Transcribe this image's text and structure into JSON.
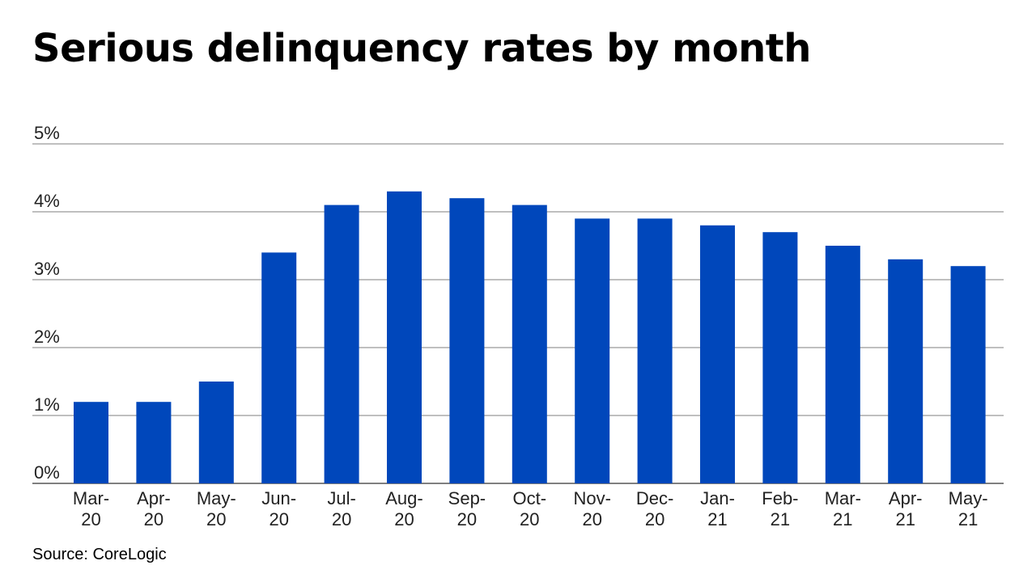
{
  "chart_data": {
    "type": "bar",
    "title": "Serious delinquency rates by month",
    "categories": [
      [
        "Mar-",
        "20"
      ],
      [
        "Apr-",
        "20"
      ],
      [
        "May-",
        "20"
      ],
      [
        "Jun-",
        "20"
      ],
      [
        "Jul-",
        "20"
      ],
      [
        "Aug-",
        "20"
      ],
      [
        "Sep-",
        "20"
      ],
      [
        "Oct-",
        "20"
      ],
      [
        "Nov-",
        "20"
      ],
      [
        "Dec-",
        "20"
      ],
      [
        "Jan-",
        "21"
      ],
      [
        "Feb-",
        "21"
      ],
      [
        "Mar-",
        "21"
      ],
      [
        "Apr-",
        "21"
      ],
      [
        "May-",
        "21"
      ]
    ],
    "values": [
      1.2,
      1.2,
      1.5,
      3.4,
      4.1,
      4.3,
      4.2,
      4.1,
      3.9,
      3.9,
      3.8,
      3.7,
      3.5,
      3.3,
      3.2
    ],
    "unit": "%",
    "ylim": [
      0,
      5
    ],
    "yticks": [
      0,
      1,
      2,
      3,
      4,
      5
    ],
    "ytick_labels": [
      "0%",
      "1%",
      "2%",
      "3%",
      "4%",
      "5%"
    ],
    "xlabel": "",
    "ylabel": "",
    "grid": true,
    "legend": false,
    "bar_color": "#0047BB",
    "grid_color": "#7F7F7F",
    "source": "Source: CoreLogic"
  }
}
